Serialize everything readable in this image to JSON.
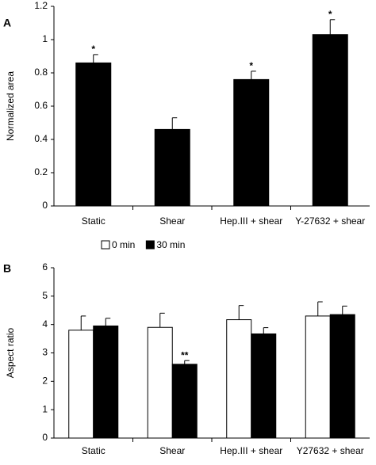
{
  "chart_data": [
    {
      "type": "bar",
      "panel_label": "A",
      "y_label": "Normalized area",
      "categories": [
        "Static",
        "Shear",
        "Hep.III + shear",
        "Y-27632 + shear"
      ],
      "series": [
        {
          "name": null,
          "color": "#000000",
          "values": [
            0.86,
            0.46,
            0.76,
            1.03
          ],
          "errors": [
            0.05,
            0.07,
            0.05,
            0.09
          ],
          "significance": [
            "*",
            null,
            "*",
            "*"
          ]
        }
      ],
      "ylim": [
        0,
        1.2
      ],
      "yticks": [
        0,
        0.2,
        0.4,
        0.6,
        0.8,
        1,
        1.2
      ]
    },
    {
      "type": "bar",
      "panel_label": "B",
      "y_label": "Aspect ratio",
      "categories": [
        "Static",
        "Shear",
        "Hep.III + shear",
        "Y27632 + shear"
      ],
      "series": [
        {
          "name": "0 min",
          "color": "#ffffff",
          "values": [
            3.8,
            3.9,
            4.17,
            4.3
          ],
          "errors": [
            0.5,
            0.5,
            0.5,
            0.5
          ],
          "significance": [
            null,
            null,
            null,
            null
          ]
        },
        {
          "name": "30 min",
          "color": "#000000",
          "values": [
            3.95,
            2.6,
            3.67,
            4.35
          ],
          "errors": [
            0.27,
            0.13,
            0.22,
            0.3
          ],
          "significance": [
            null,
            "**",
            null,
            null
          ]
        }
      ],
      "ylim": [
        0,
        6
      ],
      "yticks": [
        0,
        1,
        2,
        3,
        4,
        5,
        6
      ]
    }
  ]
}
